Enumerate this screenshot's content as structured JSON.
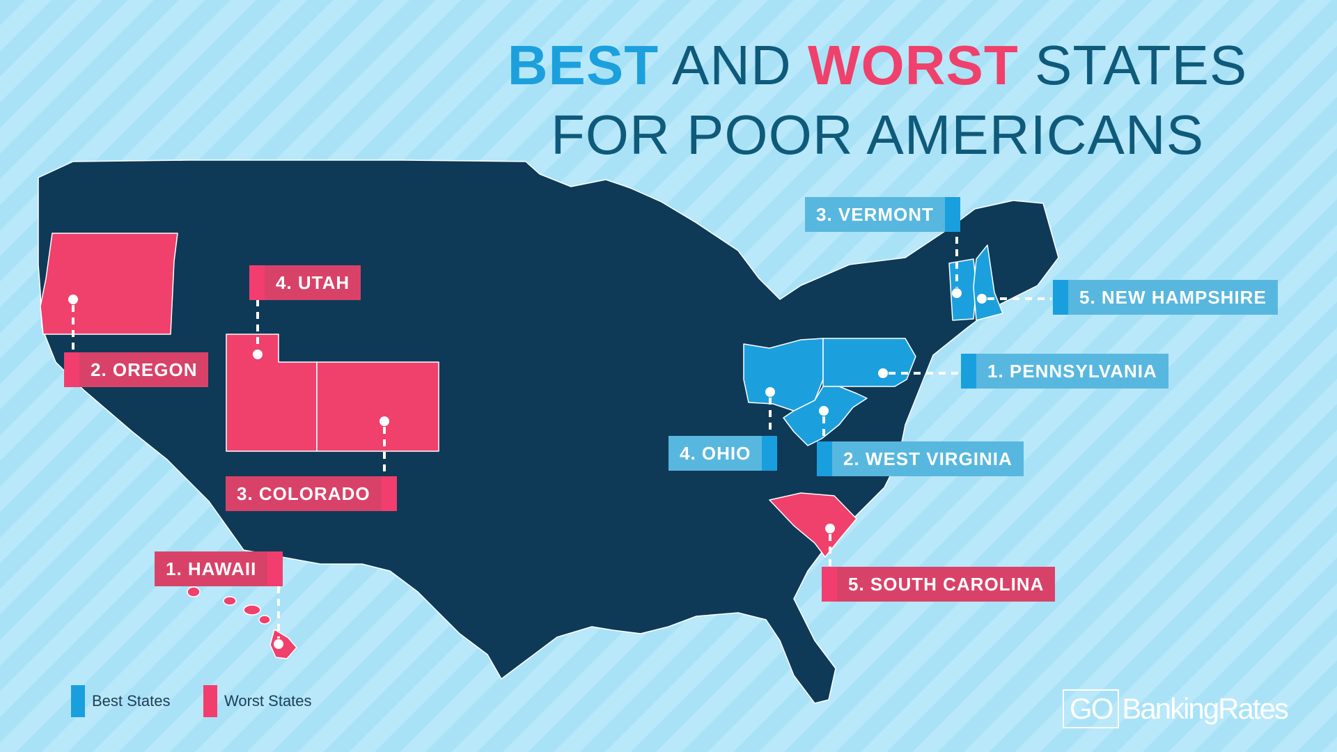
{
  "title": {
    "best": "BEST",
    "and": "AND",
    "worst": "WORST",
    "states": "STATES",
    "line2": "FOR POOR AMERICANS"
  },
  "best_states": [
    {
      "rank_label": "1. PENNSYLVANIA",
      "state": "Pennsylvania",
      "rank": 1
    },
    {
      "rank_label": "2. WEST VIRGINIA",
      "state": "West Virginia",
      "rank": 2
    },
    {
      "rank_label": "3. VERMONT",
      "state": "Vermont",
      "rank": 3
    },
    {
      "rank_label": "4. OHIO",
      "state": "Ohio",
      "rank": 4
    },
    {
      "rank_label": "5. NEW HAMPSHIRE",
      "state": "New Hampshire",
      "rank": 5
    }
  ],
  "worst_states": [
    {
      "rank_label": "1. HAWAII",
      "state": "Hawaii",
      "rank": 1
    },
    {
      "rank_label": "2. OREGON",
      "state": "Oregon",
      "rank": 2
    },
    {
      "rank_label": "3. COLORADO",
      "state": "Colorado",
      "rank": 3
    },
    {
      "rank_label": "4. UTAH",
      "state": "Utah",
      "rank": 4
    },
    {
      "rank_label": "5. SOUTH CAROLINA",
      "state": "South Carolina",
      "rank": 5
    }
  ],
  "legend": {
    "best": "Best States",
    "worst": "Worst States"
  },
  "logo": {
    "go": "GO",
    "rest": "BankingRates"
  },
  "colors": {
    "background": "#a9e2f7",
    "map_fill": "#0e3a57",
    "best": "#1ca0dd",
    "worst": "#f0406c",
    "title": "#0f5a7a"
  }
}
